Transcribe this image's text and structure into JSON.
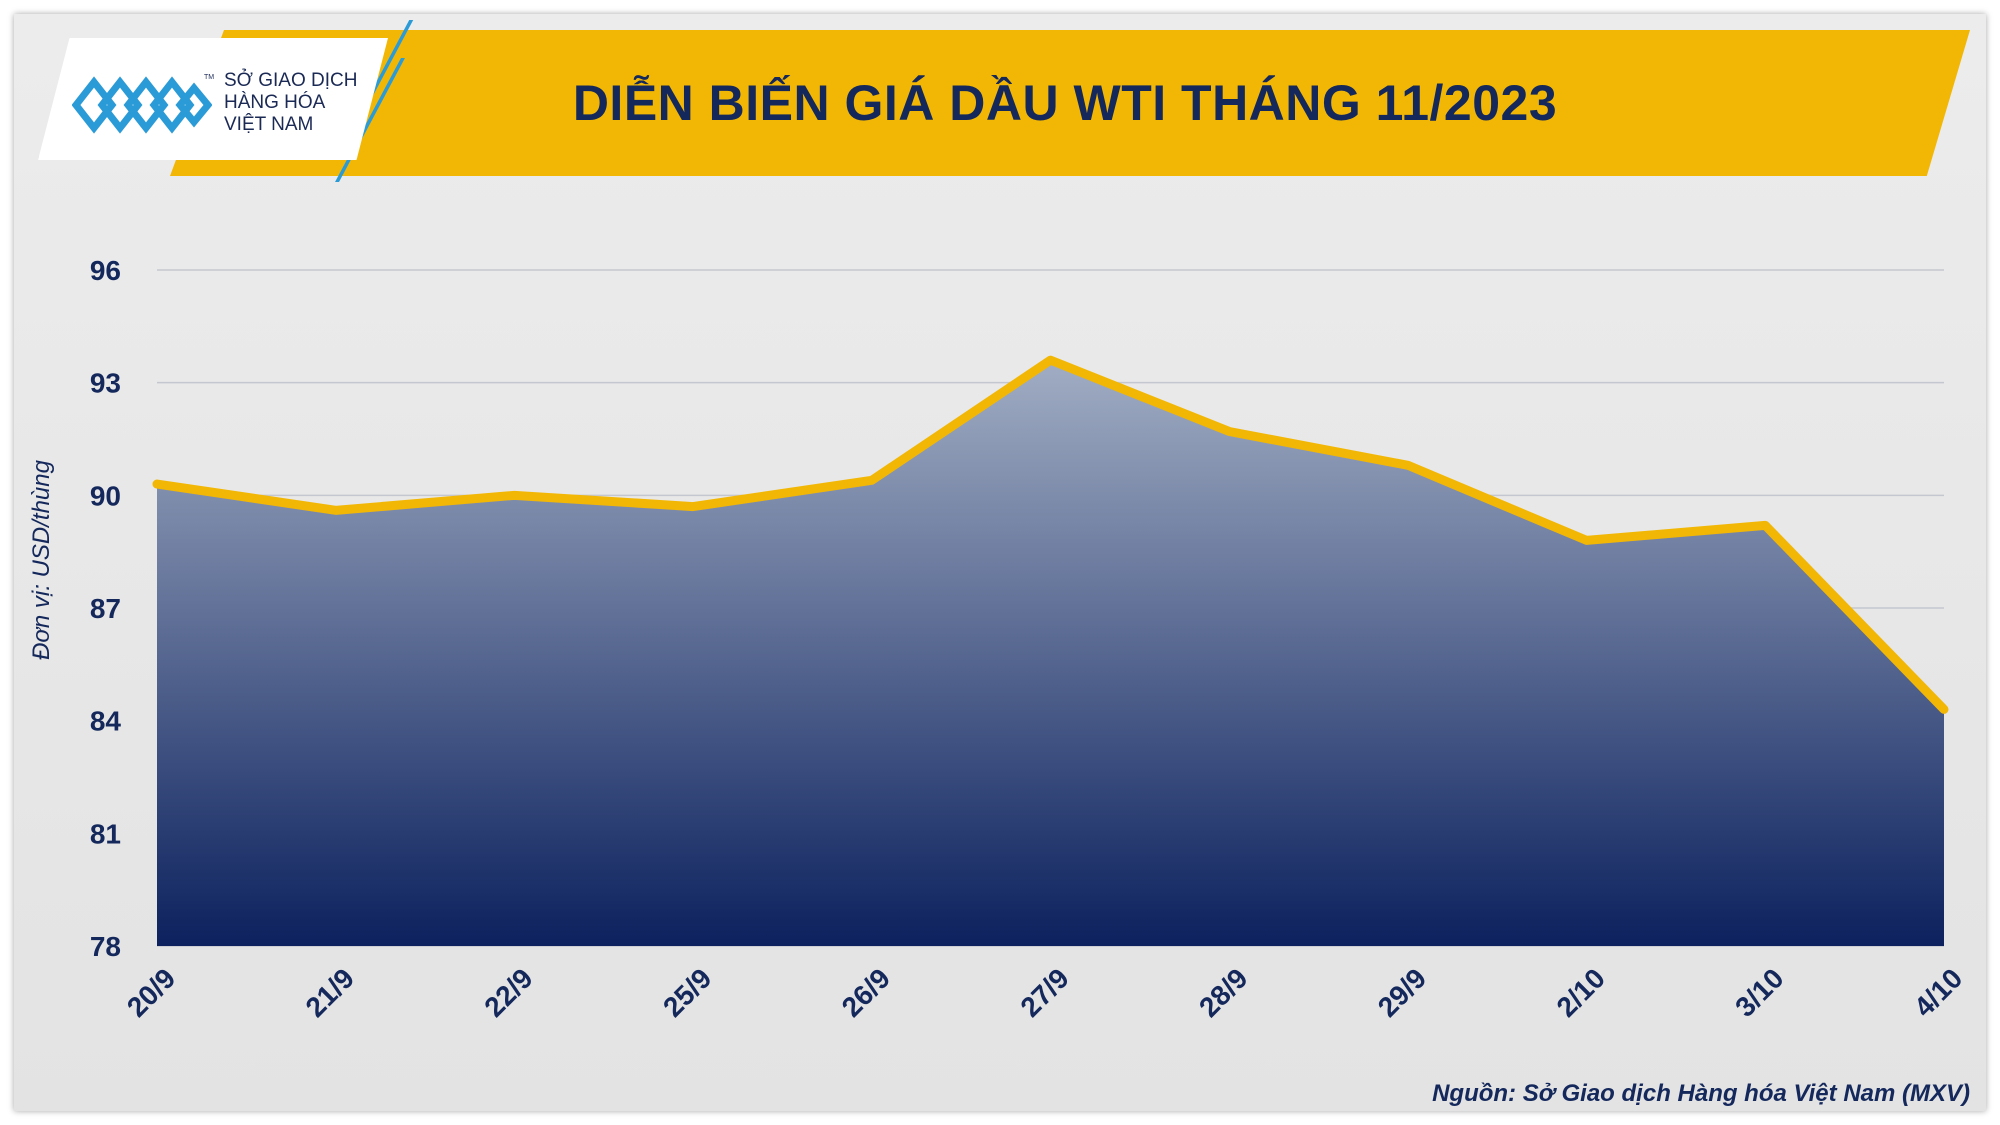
{
  "brand": {
    "line1": "SỞ GIAO DỊCH",
    "line2": "HÀNG HÓA",
    "line3": "VIỆT NAM",
    "tm": "TM",
    "accent_color": "#f2b705",
    "navy_color": "#14285c",
    "logo_color": "#2b9bd7"
  },
  "chart_data": {
    "type": "area",
    "title": "DIỄN BIẾN GIÁ DẦU WTI THÁNG 11/2023",
    "ylabel": "Đơn vị: USD/thùng",
    "xlabel": "",
    "categories": [
      "20/9",
      "21/9",
      "22/9",
      "25/9",
      "26/9",
      "27/9",
      "28/9",
      "29/9",
      "2/10",
      "3/10",
      "4/10"
    ],
    "values": [
      90.3,
      89.6,
      90.0,
      89.7,
      90.4,
      93.6,
      91.7,
      90.8,
      88.8,
      89.2,
      84.3
    ],
    "ylim": [
      78,
      96
    ],
    "yticks": [
      "78",
      "81",
      "84",
      "87",
      "90",
      "93",
      "96"
    ],
    "grid": true,
    "line_color": "#f2b705",
    "fill_top_color": "#a1adc3",
    "fill_bottom_color": "#0c215e",
    "source": "Nguồn: Sở Giao dịch Hàng hóa Việt Nam (MXV)"
  }
}
